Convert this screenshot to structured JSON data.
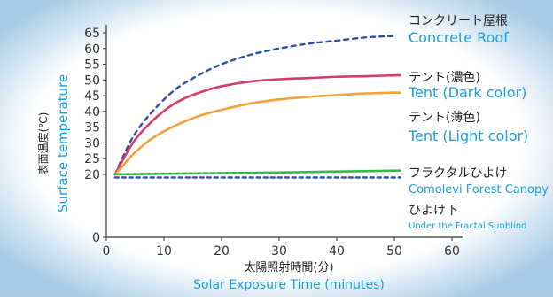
{
  "colors": {
    "background_edge": "#a9cce6",
    "background_center": "#ffffff",
    "axis": "#333333",
    "label_jp": "#222222",
    "label_en": "#1aa0e0"
  },
  "chart_data": {
    "type": "line",
    "xlabel_jp": "太陽照射時間(分)",
    "xlabel_en": "Solar Exposure Time (minutes)",
    "ylabel_jp": "表面温度(℃)",
    "ylabel_en": "Surface temperature",
    "xlim": [
      0,
      60
    ],
    "ylim": [
      0,
      65
    ],
    "x_ticks": [
      0,
      10,
      20,
      30,
      40,
      50,
      60
    ],
    "y_ticks": [
      0,
      20,
      25,
      30,
      35,
      40,
      45,
      50,
      55,
      60,
      65
    ],
    "series": [
      {
        "name_jp": "コンクリート屋根",
        "name_en": "Concrete Roof",
        "color": "#2e4fa0",
        "dashed": true,
        "x": [
          1.5,
          3,
          5,
          8,
          12,
          16,
          20,
          25,
          30,
          35,
          40,
          45,
          50
        ],
        "y": [
          20,
          26,
          33,
          40,
          47,
          51.5,
          55,
          58,
          60,
          61.5,
          62.5,
          63.5,
          64
        ]
      },
      {
        "name_jp": "テント(濃色)",
        "name_en": "Tent (Dark color)",
        "color": "#d63b6e",
        "dashed": false,
        "x": [
          1.5,
          3,
          5,
          8,
          11,
          14,
          17,
          20,
          25,
          30,
          35,
          40,
          45,
          51
        ],
        "y": [
          20,
          25,
          31,
          37,
          41.5,
          44.5,
          46.5,
          48,
          49.5,
          50.2,
          50.6,
          51,
          51.2,
          51.5
        ]
      },
      {
        "name_jp": "テント(薄色)",
        "name_en": "Tent (Light color)",
        "color": "#f2a23a",
        "dashed": false,
        "x": [
          1.5,
          3,
          5,
          8,
          12,
          16,
          20,
          25,
          30,
          35,
          40,
          45,
          51
        ],
        "y": [
          20,
          23,
          27,
          31.5,
          35.5,
          38.5,
          40.5,
          42.5,
          43.8,
          44.6,
          45.2,
          45.7,
          46
        ]
      },
      {
        "name_jp": "フラクタルひよけ",
        "name_en": "Comolevi Forest Canopy",
        "color": "#3cb54a",
        "dashed": false,
        "x": [
          1.5,
          10,
          20,
          30,
          40,
          51
        ],
        "y": [
          20,
          20.2,
          20.4,
          20.6,
          20.9,
          21.2
        ]
      },
      {
        "name_jp": "ひよけ下",
        "name_en": "Under the Fractal Sunblind",
        "color": "#2e4fa0",
        "dashed": true,
        "x": [
          1.5,
          51
        ],
        "y": [
          19,
          19
        ]
      }
    ]
  }
}
